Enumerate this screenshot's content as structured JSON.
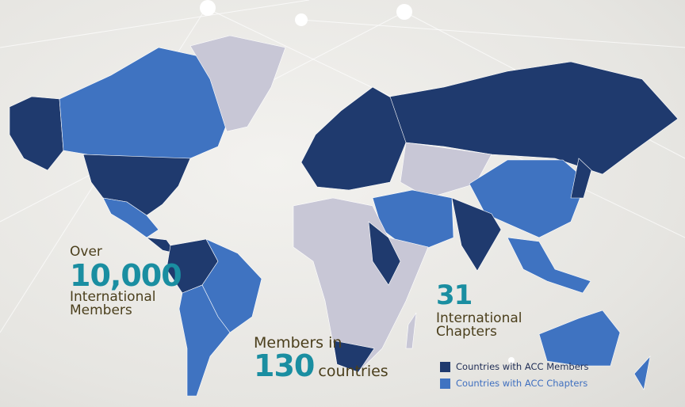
{
  "colors": {
    "members": "#1f3a6e",
    "chapters": "#3f73c1",
    "none": "#c8c7d6",
    "accent": "#1a8ea1",
    "text": "#4b3f1c"
  },
  "stats": {
    "members": {
      "prefix": "Over",
      "value": "10,000",
      "label_line1": "International",
      "label_line2": "Members"
    },
    "countries": {
      "prefix": "Members in",
      "value": "130",
      "suffix": "countries"
    },
    "chapters": {
      "value": "31",
      "label_line1": "International",
      "label_line2": "Chapters"
    }
  },
  "legend": [
    {
      "label": "Countries with ACC Members",
      "color": "#1f3a6e"
    },
    {
      "label": "Countries with ACC Chapters",
      "color": "#3f73c1"
    }
  ]
}
